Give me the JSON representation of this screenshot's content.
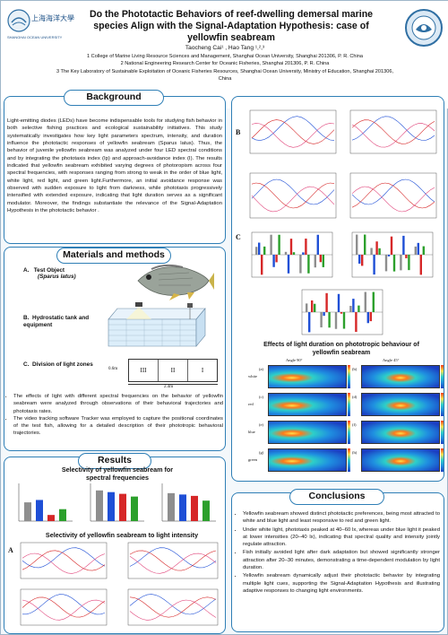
{
  "header": {
    "title": "Do the Phototactic Behaviors of reef-dwelling demersal marine species Align with the Signal-Adaptation Hypothesis: case of yellowfin seabream",
    "authors": "Taocheng Cai¹ , Hao Tang ¹,²,³",
    "affiliations": [
      "1 College of Marine Living Resource Sciences and Management, Shanghai Ocean University, Shanghai 201306, P. R. China",
      "2 National Engineering Research Center for Oceanic Fisheries, Shanghai 201306, P. R. China",
      "3 The Key Laboratory of Sustainable Exploitation of Oceanic Fisheries Resources, Shanghai Ocean University, Ministry of Education, Shanghai 201306, China"
    ],
    "logo_left_text": "上海海洋大學",
    "logo_left_sub": "SHANGHAI OCEAN UNIVERSITY"
  },
  "background": {
    "title": "Background",
    "text": "Light-emitting diodes (LEDs) have become indispensable tools for studying fish behavior in both selective fishing practices and ecological sustainability initiatives. This study systematically investigates how key light parameters spectrum, intensity, and duration influence the phototactic responses of yellowfin seabream (Sparus latus). Thus, the behavior of juvenile yellowfin seabream was analyzed under four LED spectral conditions and by integrating the phototaxis index (Ip) and approach-avoidance index (I). The results indicated that yellowfin seabream exhibited varying degrees of photoropism across four spectral frequencies, with responses ranging from strong to weak in the order of blue light, white light, red light, and green light.Furthermore, an initial avoidance response was observed with sudden exposure to light from darkness, while phototaxis progressively intensified with extended exposure, indicating that light duration serves as a significant modulator. Moreover, the findings substantiate the relevance of the Signal-Adaptation Hypothesis in the phototactic behavior ."
  },
  "methods": {
    "title": "Materials and methods",
    "a_label": "A.",
    "a_text": "Test Object",
    "a_species": "Sparus latus",
    "b_label": "B.",
    "b_text": "Hydrostatic tank and equipment",
    "c_label": "C.",
    "c_text": "Division of light zones",
    "zones": [
      "III",
      "II",
      "I"
    ],
    "dim_h": "0.6m",
    "dim_w": "2.4m",
    "bullets": [
      "The effects of light with different spectral frequencies on the behavior of yellowfin seabream were analyzed through observations of their behavioral trajectories and phototaxis rates.",
      "The video tracking software Tracker was employed to capture the positional coordinates of the test fish, allowing for a detailed description of their phototropic behavioral trajectories."
    ]
  },
  "results": {
    "title": "Results",
    "sub1": "Selectivity of yellowfin seabream for spectral frequencies",
    "sub2": "Selectivity of yellowfin seabream to light intensity",
    "fig_a": "A",
    "fig_b": "B",
    "fig_c": "C",
    "sub3": "Effects of light duration on phototropic behaviour of yellowfin seabream",
    "heatmap_cols": [
      "Angle 90°",
      "Angle 45°"
    ],
    "heatmap_rows": [
      "white",
      "red",
      "blue",
      "green"
    ],
    "heatmap_tags": [
      "(a)",
      "(b)",
      "(c)",
      "(d)",
      "(e)",
      "(f)",
      "(g)",
      "(h)"
    ],
    "colors": {
      "white": "#8e8e8e",
      "red": "#d62728",
      "blue": "#1f4fd6",
      "green": "#2ca02c",
      "accent": "#2f7fb6"
    }
  },
  "conclusions": {
    "title": "Conclusions",
    "bullets": [
      "Yellowfin seabream showed distinct phototactic preferences, being most attracted to white and blue light and least responsive to red and green light.",
      "Under white light, phototaxis peaked at 40–60 lx, whereas under blue light it peaked at lower intensities (20–40 lx), indicating that spectral quality and intensity jointly regulate attraction.",
      "Fish initially avoided light after dark adaptation but showed significantly stronger attraction after 20–30 minutes, demonstrating a time-dependent modulation by light duration.",
      "Yellowfin seabream dynamically adjust their phototactic behavior by integrating multiple light cues, supporting the Signal-Adaptation Hypothesis and illustrating adaptive responses to changing light environments."
    ]
  }
}
